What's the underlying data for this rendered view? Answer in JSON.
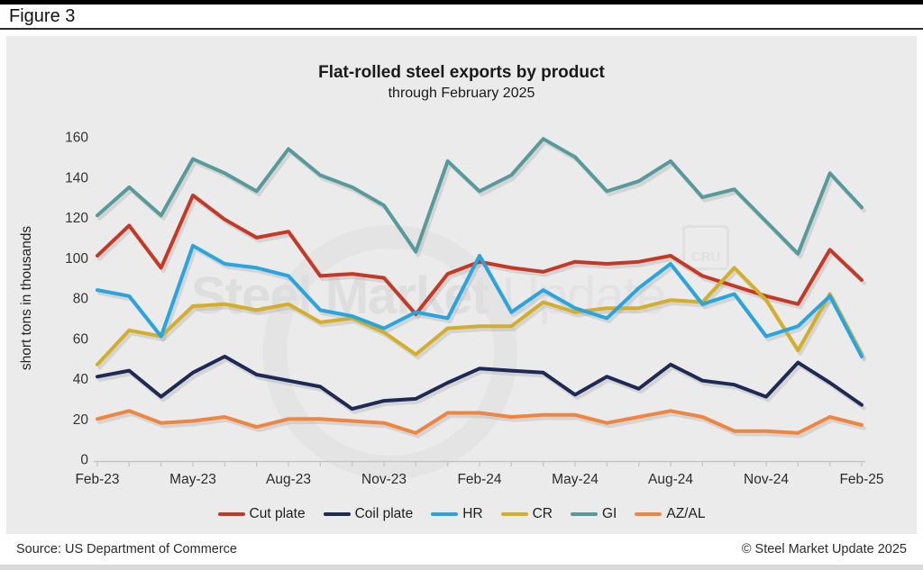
{
  "figure_label": "Figure 3",
  "chart": {
    "title": "Flat-rolled steel exports by product",
    "subtitle": "through February 2025",
    "y_axis_label": "short tons in thousands",
    "watermark": {
      "part1": "Steel Market",
      "part2": "Update",
      "cru": "CRU"
    }
  },
  "footer": {
    "source": "Source: US Department of Commerce",
    "copyright": "© Steel Market Update 2025"
  },
  "chart_data": {
    "type": "line",
    "title": "Flat-rolled steel exports by product",
    "subtitle": "through February 2025",
    "xlabel": "",
    "ylabel": "short tons in thousands",
    "ylim": [
      0,
      160
    ],
    "y_ticks": [
      0,
      20,
      40,
      60,
      80,
      100,
      120,
      140,
      160
    ],
    "grid": false,
    "legend_position": "bottom",
    "x": [
      "Feb-23",
      "Mar-23",
      "Apr-23",
      "May-23",
      "Jun-23",
      "Jul-23",
      "Aug-23",
      "Sep-23",
      "Oct-23",
      "Nov-23",
      "Dec-23",
      "Jan-24",
      "Feb-24",
      "Mar-24",
      "Apr-24",
      "May-24",
      "Jun-24",
      "Jul-24",
      "Aug-24",
      "Sep-24",
      "Oct-24",
      "Nov-24",
      "Dec-24",
      "Jan-25",
      "Feb-25"
    ],
    "x_tick_labels_shown": [
      "Feb-23",
      "May-23",
      "Aug-23",
      "Nov-23",
      "Feb-24",
      "May-24",
      "Aug-24",
      "Nov-24",
      "Feb-25"
    ],
    "series": [
      {
        "name": "Cut plate",
        "color": "#c53826",
        "values": [
          101,
          116,
          95,
          131,
          119,
          110,
          113,
          91,
          92,
          90,
          72,
          92,
          98,
          95,
          93,
          98,
          97,
          98,
          101,
          91,
          86,
          81,
          77,
          104,
          89
        ]
      },
      {
        "name": "Coil plate",
        "color": "#1e2a55",
        "values": [
          41,
          44,
          31,
          43,
          51,
          42,
          39,
          36,
          25,
          29,
          30,
          38,
          45,
          44,
          43,
          32,
          41,
          35,
          47,
          39,
          37,
          31,
          48,
          38,
          27
        ]
      },
      {
        "name": "HR",
        "color": "#28a4de",
        "values": [
          84,
          81,
          61,
          106,
          97,
          95,
          91,
          74,
          71,
          65,
          73,
          70,
          101,
          73,
          84,
          75,
          70,
          85,
          97,
          77,
          82,
          61,
          66,
          81,
          51
        ]
      },
      {
        "name": "CR",
        "color": "#d3ae2b",
        "values": [
          47,
          64,
          61,
          76,
          77,
          74,
          77,
          68,
          70,
          63,
          52,
          65,
          66,
          66,
          78,
          73,
          75,
          75,
          79,
          78,
          95,
          79,
          54,
          82,
          52
        ]
      },
      {
        "name": "GI",
        "color": "#579a9b",
        "values": [
          121,
          135,
          121,
          149,
          142,
          133,
          154,
          141,
          135,
          126,
          103,
          148,
          133,
          141,
          159,
          150,
          133,
          138,
          148,
          130,
          134,
          118,
          102,
          142,
          125
        ]
      },
      {
        "name": "AZ/AL",
        "color": "#f08540",
        "values": [
          20,
          24,
          18,
          19,
          21,
          16,
          20,
          20,
          19,
          18,
          13,
          23,
          23,
          21,
          22,
          22,
          18,
          21,
          24,
          21,
          14,
          14,
          13,
          21,
          17
        ]
      }
    ],
    "draw_order": [
      "GI",
      "Cut plate",
      "CR",
      "HR",
      "Coil plate",
      "AZ/AL"
    ]
  }
}
